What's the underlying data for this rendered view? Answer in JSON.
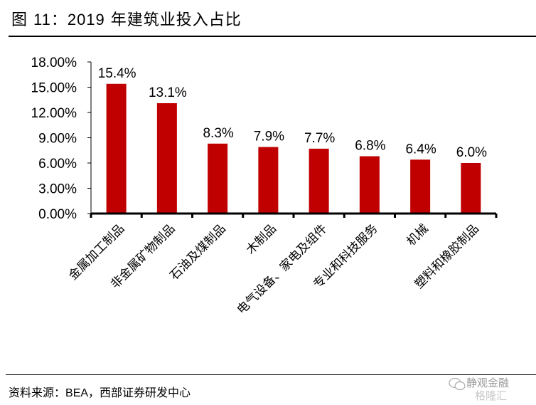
{
  "header": {
    "title_prefix": "图 ",
    "title_number": "11：2019",
    "title_suffix": " 年建筑业投入占比"
  },
  "footer": {
    "source_prefix": "资料来源：",
    "source_latin": "BEA",
    "source_suffix": "，西部证券研发中心"
  },
  "watermark": {
    "line1": "静观金融",
    "line2": "格隆汇",
    "icon": "wechat-icon"
  },
  "colors": {
    "bar": "#C00000",
    "axis": "#000000"
  },
  "chart_data": {
    "type": "bar",
    "title": "2019 年建筑业投入占比",
    "xlabel": "",
    "ylabel": "",
    "ylim": [
      0,
      18
    ],
    "yticks": [
      0,
      3,
      6,
      9,
      12,
      15,
      18
    ],
    "ytick_labels": [
      "0.00%",
      "3.00%",
      "6.00%",
      "9.00%",
      "12.00%",
      "15.00%",
      "18.00%"
    ],
    "grid": false,
    "legend": "none",
    "categories": [
      "金属加工制品",
      "非金属矿物制品",
      "石油及煤制品",
      "木制品",
      "电气设备、家电及组件",
      "专业和科技服务",
      "机械",
      "塑料和橡胶制品"
    ],
    "values": [
      15.4,
      13.1,
      8.3,
      7.9,
      7.7,
      6.8,
      6.4,
      6.0
    ],
    "data_labels": [
      "15.4%",
      "13.1%",
      "8.3%",
      "7.9%",
      "7.7%",
      "6.8%",
      "6.4%",
      "6.0%"
    ]
  }
}
